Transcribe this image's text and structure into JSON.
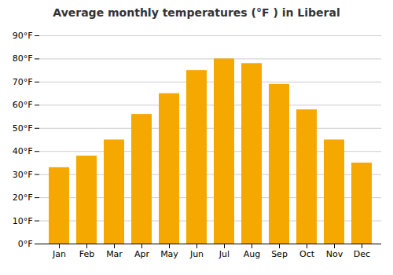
{
  "chart_data": {
    "type": "bar",
    "title": "Average monthly temperatures (°F ) in Liberal",
    "categories": [
      "Jan",
      "Feb",
      "Mar",
      "Apr",
      "May",
      "Jun",
      "Jul",
      "Aug",
      "Sep",
      "Oct",
      "Nov",
      "Dec"
    ],
    "values": [
      33,
      38,
      45,
      56,
      65,
      75,
      80,
      78,
      69,
      58,
      45,
      35
    ],
    "color": "#F5A800",
    "ylim": [
      0,
      90
    ],
    "yticks": [
      {
        "value": 0,
        "label": "0°F"
      },
      {
        "value": 10,
        "label": "10°F"
      },
      {
        "value": 20,
        "label": "20°F"
      },
      {
        "value": 30,
        "label": "30°F"
      },
      {
        "value": 40,
        "label": "40°F"
      },
      {
        "value": 50,
        "label": "50°F"
      },
      {
        "value": 60,
        "label": "60°F"
      },
      {
        "value": 70,
        "label": "70°F"
      },
      {
        "value": 80,
        "label": "80°F"
      },
      {
        "value": 90,
        "label": "90°F"
      }
    ],
    "grid": true
  }
}
